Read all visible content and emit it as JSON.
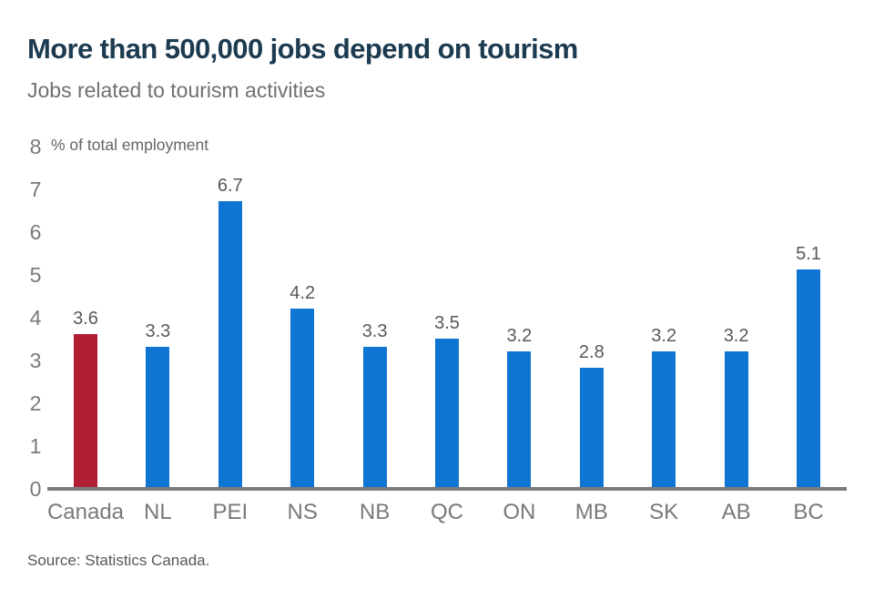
{
  "header": {
    "title": "More than 500,000 jobs depend on tourism",
    "subtitle": "Jobs related to tourism activities"
  },
  "chart_data": {
    "type": "bar",
    "title": "More than 500,000 jobs depend on tourism",
    "subtitle": "Jobs related to tourism activities",
    "ylabel": "% of total employment",
    "xlabel": "",
    "categories": [
      "Canada",
      "NL",
      "PEI",
      "NS",
      "NB",
      "QC",
      "ON",
      "MB",
      "SK",
      "AB",
      "BC"
    ],
    "values": [
      3.6,
      3.3,
      6.7,
      4.2,
      3.3,
      3.5,
      3.2,
      2.8,
      3.2,
      3.2,
      5.1
    ],
    "value_labels": [
      "3.6",
      "3.3",
      "6.7",
      "4.2",
      "3.3",
      "3.5",
      "3.2",
      "2.8",
      "3.2",
      "3.2",
      "5.1"
    ],
    "ylim": [
      0,
      8
    ],
    "yticks": [
      0,
      1,
      2,
      3,
      4,
      5,
      6,
      7,
      8
    ],
    "grid": false,
    "legend": null,
    "highlight_index": 0,
    "colors": {
      "highlight_bar": "#b11f35",
      "default_bar": "#0f75d2"
    }
  },
  "colors": {
    "title": "#1d3b50",
    "subtitle": "#6e7073",
    "tick_label": "#77797c",
    "value_label": "#58595b",
    "axis_line": "#797b7e",
    "source": "#565759"
  },
  "footer": {
    "source": "Source: Statistics Canada."
  }
}
